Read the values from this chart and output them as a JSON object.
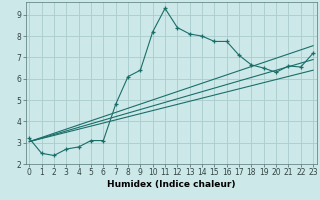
{
  "xlabel": "Humidex (Indice chaleur)",
  "bg_color": "#cce8e8",
  "grid_color": "#aacccc",
  "line_color": "#1a6e6a",
  "main_x": [
    0,
    1,
    2,
    3,
    4,
    5,
    6,
    7,
    8,
    9,
    10,
    11,
    12,
    13,
    14,
    15,
    16,
    17,
    18,
    19,
    20,
    21,
    22,
    23
  ],
  "main_y": [
    3.2,
    2.5,
    2.4,
    2.7,
    2.8,
    3.1,
    3.1,
    4.8,
    6.1,
    6.4,
    8.2,
    9.3,
    8.4,
    8.1,
    8.0,
    7.75,
    7.75,
    7.1,
    6.65,
    6.5,
    6.3,
    6.6,
    6.55,
    7.2
  ],
  "line2_x": [
    0,
    23
  ],
  "line2_y": [
    3.05,
    6.4
  ],
  "line3_x": [
    0,
    23
  ],
  "line3_y": [
    3.05,
    6.9
  ],
  "line4_x": [
    0,
    23
  ],
  "line4_y": [
    3.05,
    7.55
  ],
  "xlim": [
    -0.3,
    23.3
  ],
  "ylim": [
    2.0,
    9.6
  ],
  "yticks": [
    2,
    3,
    4,
    5,
    6,
    7,
    8,
    9
  ],
  "xticks": [
    0,
    1,
    2,
    3,
    4,
    5,
    6,
    7,
    8,
    9,
    10,
    11,
    12,
    13,
    14,
    15,
    16,
    17,
    18,
    19,
    20,
    21,
    22,
    23
  ],
  "xlabel_fontsize": 6.5,
  "tick_fontsize": 5.5
}
